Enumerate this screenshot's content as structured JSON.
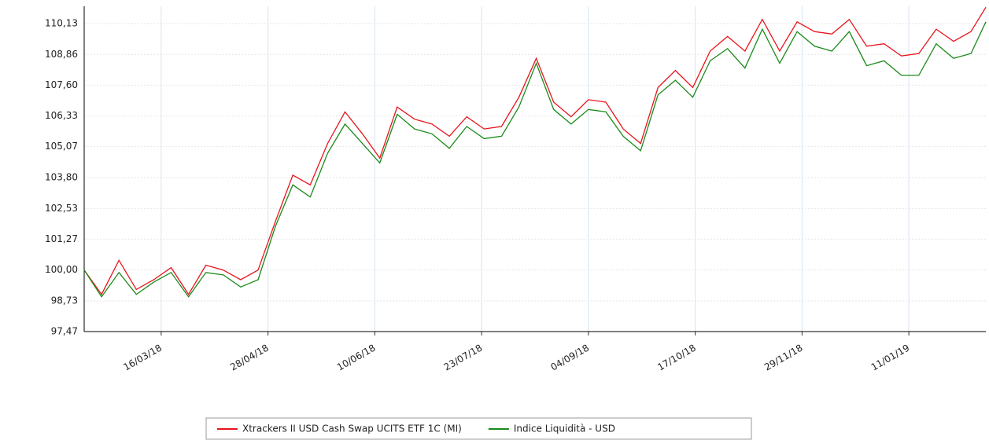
{
  "chart_data": {
    "type": "line",
    "x": [
      "2018-02-13",
      "2018-02-20",
      "2018-02-27",
      "2018-03-06",
      "2018-03-13",
      "2018-03-20",
      "2018-03-27",
      "2018-04-03",
      "2018-04-10",
      "2018-04-17",
      "2018-04-24",
      "2018-05-01",
      "2018-05-08",
      "2018-05-15",
      "2018-05-22",
      "2018-05-29",
      "2018-06-05",
      "2018-06-12",
      "2018-06-19",
      "2018-06-26",
      "2018-07-03",
      "2018-07-10",
      "2018-07-17",
      "2018-07-24",
      "2018-07-31",
      "2018-08-07",
      "2018-08-14",
      "2018-08-21",
      "2018-08-28",
      "2018-09-04",
      "2018-09-11",
      "2018-09-18",
      "2018-09-25",
      "2018-10-02",
      "2018-10-09",
      "2018-10-16",
      "2018-10-23",
      "2018-10-30",
      "2018-11-06",
      "2018-11-13",
      "2018-11-20",
      "2018-11-27",
      "2018-12-04",
      "2018-12-11",
      "2018-12-18",
      "2018-12-25",
      "2019-01-01",
      "2019-01-08",
      "2019-01-15",
      "2019-01-22",
      "2019-01-29",
      "2019-02-05",
      "2019-02-11"
    ],
    "series": [
      {
        "name": "Xtrackers II USD Cash Swap UCITS ETF 1C (MI)",
        "color": "#e8141c",
        "values": [
          100.0,
          99.0,
          100.4,
          99.2,
          99.6,
          100.1,
          99.0,
          100.2,
          100.0,
          99.6,
          100.0,
          102.0,
          103.9,
          103.5,
          105.2,
          106.5,
          105.6,
          104.6,
          106.7,
          106.2,
          106.0,
          105.5,
          106.3,
          105.8,
          105.9,
          107.1,
          108.7,
          106.9,
          106.3,
          107.0,
          106.9,
          105.8,
          105.2,
          107.5,
          108.2,
          107.5,
          109.0,
          109.6,
          109.0,
          110.3,
          109.0,
          110.2,
          109.8,
          109.7,
          110.3,
          109.2,
          109.3,
          108.8,
          108.9,
          109.9,
          109.4,
          109.8,
          110.8
        ]
      },
      {
        "name": "Indice Liquidità - USD",
        "color": "#1a8a1a",
        "values": [
          100.0,
          98.9,
          99.9,
          99.0,
          99.5,
          99.9,
          98.9,
          99.9,
          99.8,
          99.3,
          99.6,
          101.8,
          103.5,
          103.0,
          104.8,
          106.0,
          105.2,
          104.4,
          106.4,
          105.8,
          105.6,
          105.0,
          105.9,
          105.4,
          105.5,
          106.7,
          108.5,
          106.6,
          106.0,
          106.6,
          106.5,
          105.5,
          104.9,
          107.2,
          107.8,
          107.1,
          108.6,
          109.1,
          108.3,
          109.9,
          108.5,
          109.8,
          109.2,
          109.0,
          109.8,
          108.4,
          108.6,
          108.0,
          108.0,
          109.3,
          108.7,
          108.9,
          110.2
        ]
      }
    ],
    "xlim": [
      "2018-02-13",
      "2019-02-11"
    ],
    "xticks": [
      {
        "value": "2018-03-16",
        "label": "16/03/18"
      },
      {
        "value": "2018-04-28",
        "label": "28/04/18"
      },
      {
        "value": "2018-06-10",
        "label": "10/06/18"
      },
      {
        "value": "2018-07-23",
        "label": "23/07/18"
      },
      {
        "value": "2018-09-04",
        "label": "04/09/18"
      },
      {
        "value": "2018-10-17",
        "label": "17/10/18"
      },
      {
        "value": "2018-11-29",
        "label": "29/11/18"
      },
      {
        "value": "2019-01-11",
        "label": "11/01/19"
      }
    ],
    "ylim": [
      97.47,
      110.84
    ],
    "yticks": [
      {
        "value": 97.47,
        "label": "97,47"
      },
      {
        "value": 98.73,
        "label": "98,73"
      },
      {
        "value": 100.0,
        "label": "100,00"
      },
      {
        "value": 101.27,
        "label": "101,27"
      },
      {
        "value": 102.53,
        "label": "102,53"
      },
      {
        "value": 103.8,
        "label": "103,80"
      },
      {
        "value": 105.07,
        "label": "105,07"
      },
      {
        "value": 106.33,
        "label": "106,33"
      },
      {
        "value": 107.6,
        "label": "107,60"
      },
      {
        "value": 108.86,
        "label": "108,86"
      },
      {
        "value": 110.13,
        "label": "110,13"
      }
    ],
    "grid": true,
    "legend": "bottom"
  }
}
